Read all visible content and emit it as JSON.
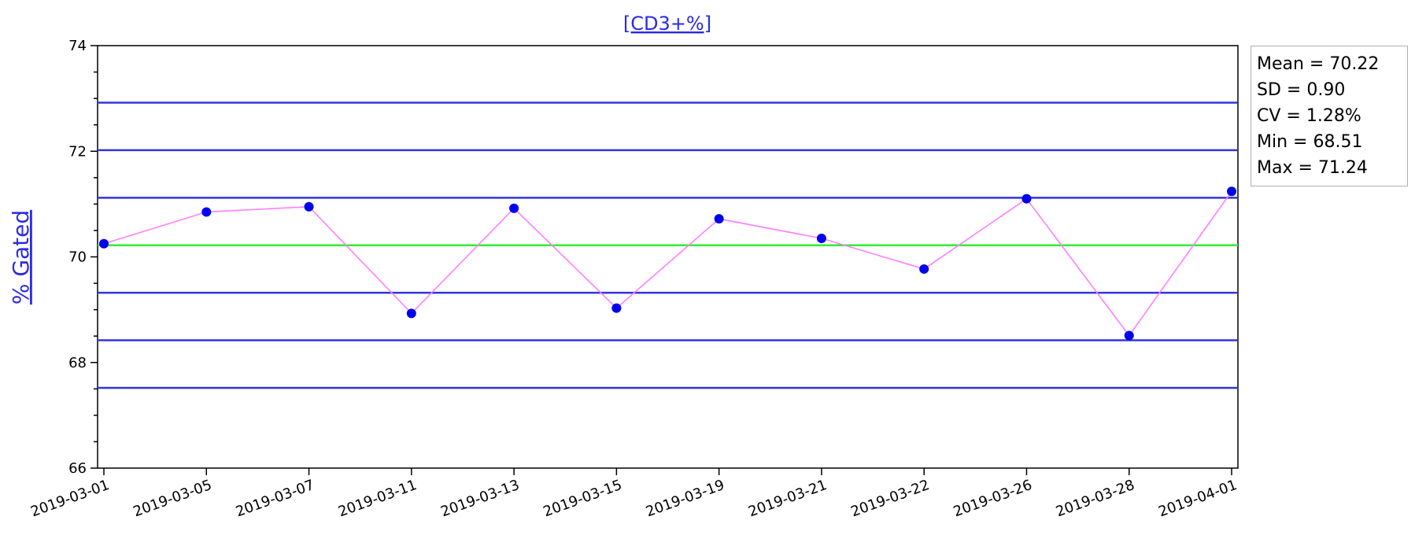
{
  "chart_data": {
    "type": "line",
    "title": "[CD3+%]",
    "ylabel": "% Gated",
    "xlabel": "",
    "categories": [
      "2019-03-01",
      "2019-03-05",
      "2019-03-07",
      "2019-03-11",
      "2019-03-13",
      "2019-03-15",
      "2019-03-19",
      "2019-03-21",
      "2019-03-22",
      "2019-03-26",
      "2019-03-28",
      "2019-04-01"
    ],
    "series": [
      {
        "values": [
          70.25,
          70.85,
          70.95,
          68.93,
          70.92,
          69.03,
          70.72,
          70.35,
          69.77,
          71.1,
          68.51,
          71.24
        ]
      }
    ],
    "ylim": [
      66,
      74
    ],
    "yticks": [
      66,
      68,
      70,
      72,
      74
    ],
    "mean_line": 70.22,
    "limit_lines": [
      72.92,
      72.02,
      71.12,
      69.32,
      68.42,
      67.52
    ],
    "colors": {
      "line": "#ff80ff",
      "marker": "#0000ee",
      "limit": "#3333dd",
      "mean": "#33ee33",
      "label": "#2a2ae6"
    },
    "stats": {
      "mean": "Mean = 70.22",
      "sd": "SD = 0.90",
      "cv": "CV = 1.28%",
      "min": "Min = 68.51",
      "max": "Max = 71.24"
    }
  }
}
